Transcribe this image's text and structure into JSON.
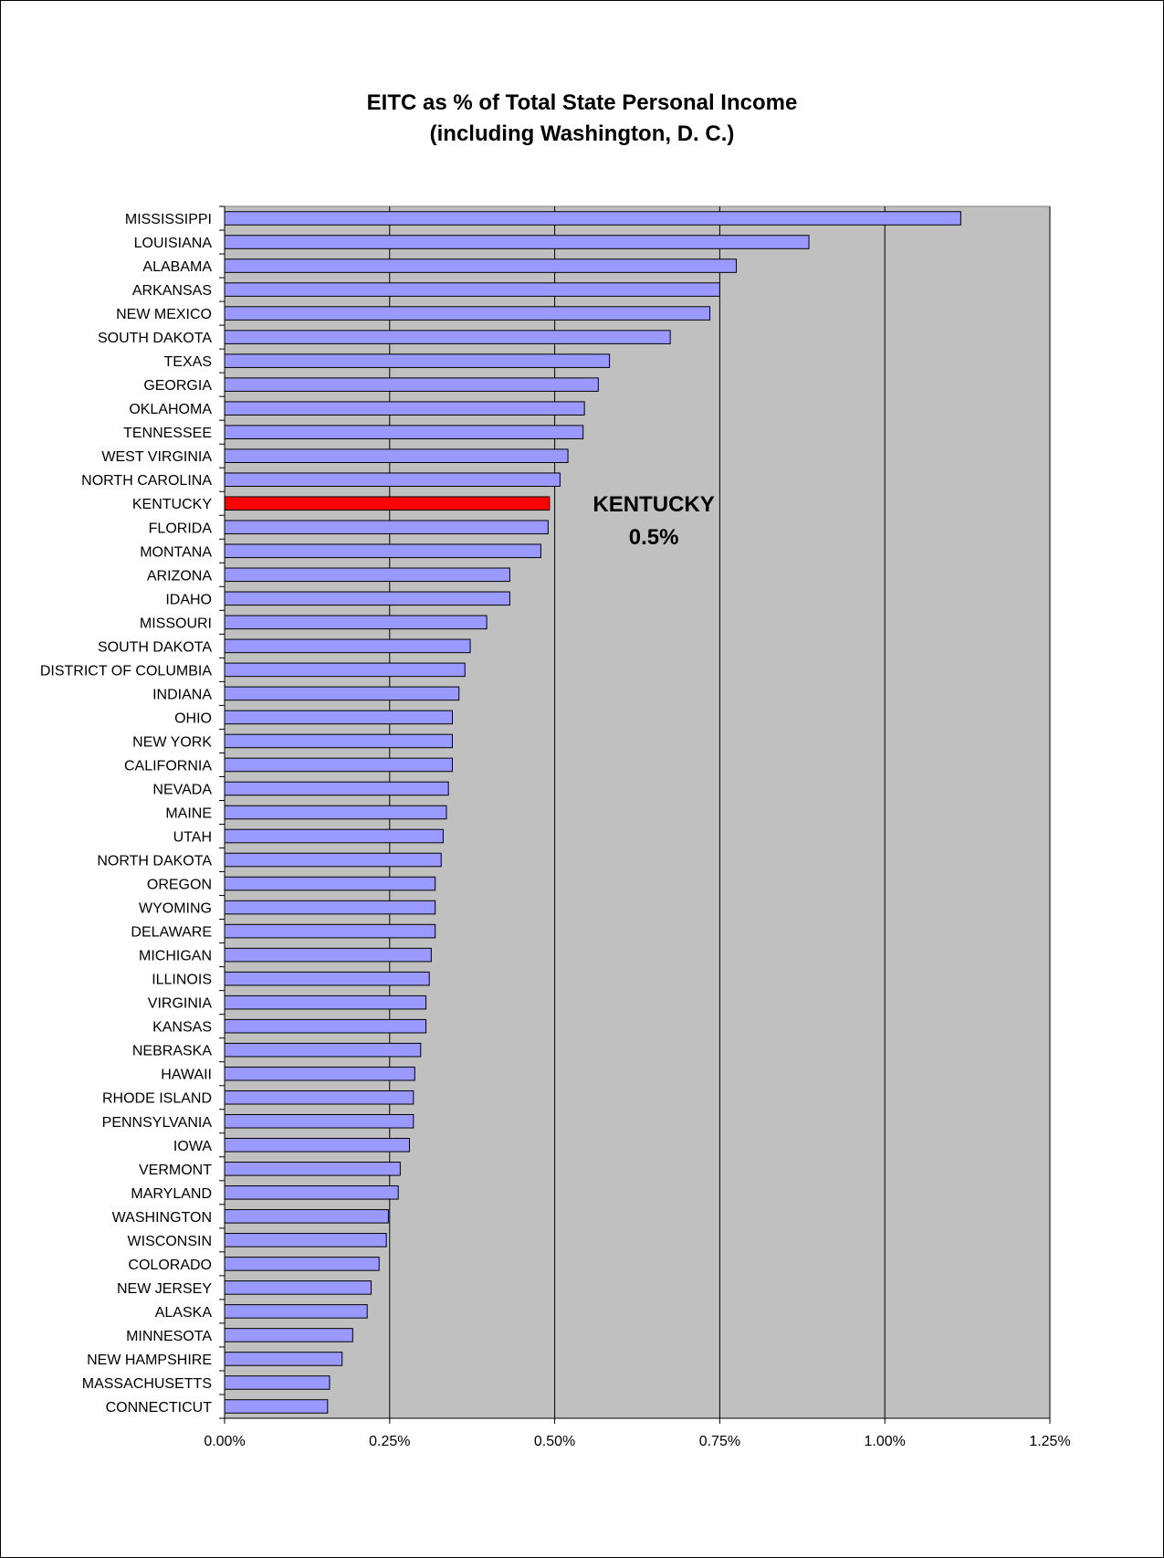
{
  "chart_data": {
    "type": "bar",
    "orientation": "horizontal",
    "title": "EITC as % of Total State Personal Income",
    "subtitle": "(including Washington, D. C.)",
    "categories": [
      "MISSISSIPPI",
      "LOUISIANA",
      "ALABAMA",
      "ARKANSAS",
      "NEW MEXICO",
      "SOUTH DAKOTA",
      "TEXAS",
      "GEORGIA",
      "OKLAHOMA",
      "TENNESSEE",
      "WEST VIRGINIA",
      "NORTH CAROLINA",
      "KENTUCKY",
      "FLORIDA",
      "MONTANA",
      "ARIZONA",
      "IDAHO",
      "MISSOURI",
      "SOUTH DAKOTA",
      "DISTRICT OF COLUMBIA",
      "INDIANA",
      "OHIO",
      "NEW YORK",
      "CALIFORNIA",
      "NEVADA",
      "MAINE",
      "UTAH",
      "NORTH DAKOTA",
      "OREGON",
      "WYOMING",
      "DELAWARE",
      "MICHIGAN",
      "ILLINOIS",
      "VIRGINIA",
      "KANSAS",
      "NEBRASKA",
      "HAWAII",
      "RHODE ISLAND",
      "PENNSYLVANIA",
      "IOWA",
      "VERMONT",
      "MARYLAND",
      "WASHINGTON",
      "WISCONSIN",
      "COLORADO",
      "NEW JERSEY",
      "ALASKA",
      "MINNESOTA",
      "NEW HAMPSHIRE",
      "MASSACHUSETTS",
      "CONNECTICUT"
    ],
    "values": [
      1.115,
      0.885,
      0.775,
      0.75,
      0.735,
      0.675,
      0.583,
      0.566,
      0.545,
      0.543,
      0.52,
      0.508,
      0.492,
      0.49,
      0.479,
      0.432,
      0.432,
      0.397,
      0.372,
      0.364,
      0.355,
      0.345,
      0.345,
      0.345,
      0.339,
      0.336,
      0.331,
      0.328,
      0.319,
      0.319,
      0.319,
      0.313,
      0.31,
      0.305,
      0.305,
      0.297,
      0.288,
      0.286,
      0.286,
      0.28,
      0.266,
      0.263,
      0.248,
      0.245,
      0.234,
      0.222,
      0.216,
      0.194,
      0.178,
      0.159,
      0.156
    ],
    "highlight": "KENTUCKY",
    "xlim": [
      0,
      1.25
    ],
    "xticks": [
      "0.00%",
      "0.25%",
      "0.50%",
      "0.75%",
      "1.00%",
      "1.25%"
    ],
    "xtick_values": [
      0,
      0.25,
      0.5,
      0.75,
      1.0,
      1.25
    ],
    "grid": true,
    "legend": "none",
    "annotation": {
      "line1": "KENTUCKY",
      "line2": "0.5%"
    },
    "colors": {
      "bar": "#9999ff",
      "highlight": "#ff0000",
      "plot_bg": "#c0c0c0",
      "gridline": "#000000",
      "bar_edge": "#000000"
    }
  }
}
